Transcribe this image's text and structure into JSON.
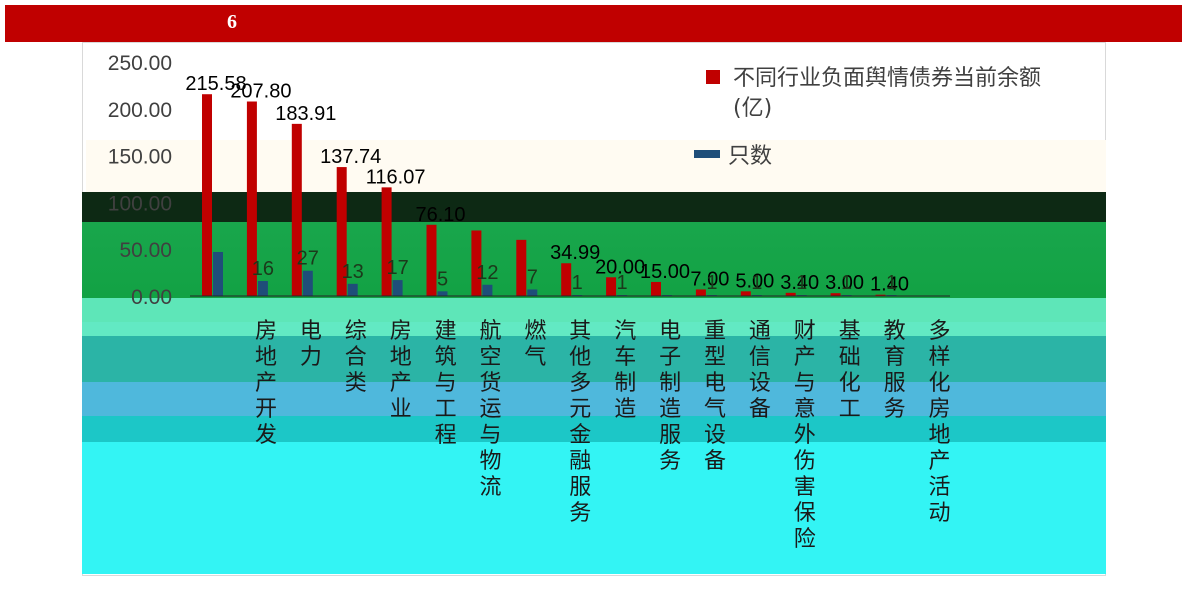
{
  "header": {
    "number": "6"
  },
  "colors": {
    "header_bg": "#c00000",
    "series_amount": "#c00000",
    "series_count": "#1f4e79"
  },
  "chart_data": {
    "type": "bar",
    "categories": [
      "房地产开发",
      "电力",
      "综合类",
      "房地产业",
      "建筑与工程",
      "航空货运与物流",
      "燃气",
      "其他多元金融服务",
      "汽车制造",
      "电子制造服务",
      "重型电气设备",
      "通信设备",
      "财产与意外伤害保险",
      "基础化工",
      "教育服务",
      "多样化房地产活动"
    ],
    "series": [
      {
        "name": "不同行业负面舆情债券当前余额(亿)",
        "values": [
          215.58,
          207.8,
          183.91,
          137.74,
          116.07,
          76.1,
          70,
          60,
          34.99,
          20,
          15,
          7,
          5,
          3.4,
          3,
          1.4
        ],
        "labels": [
          "215.58",
          "207.80",
          "183.91",
          "137.74",
          "116.07",
          "76.10",
          "",
          "",
          "34.99",
          "20.00",
          "15.00",
          "7.00",
          "5.00",
          "3.40",
          "3.00",
          "1.40"
        ]
      },
      {
        "name": "只数",
        "values": [
          47,
          16,
          27,
          13,
          17,
          5,
          12,
          7,
          1,
          1,
          1,
          1,
          1,
          1,
          1,
          1
        ],
        "labels": [
          "",
          "16",
          "27",
          "13",
          "17",
          "5",
          "12",
          "7",
          "1",
          "1",
          "",
          "1",
          "1",
          "1",
          "1",
          "1"
        ]
      }
    ],
    "yticks": [
      "250.00",
      "200.00",
      "150.00",
      "100.00",
      "50.00",
      "0.00"
    ],
    "ylim": [
      0,
      250
    ],
    "legend_position": "top-right"
  }
}
